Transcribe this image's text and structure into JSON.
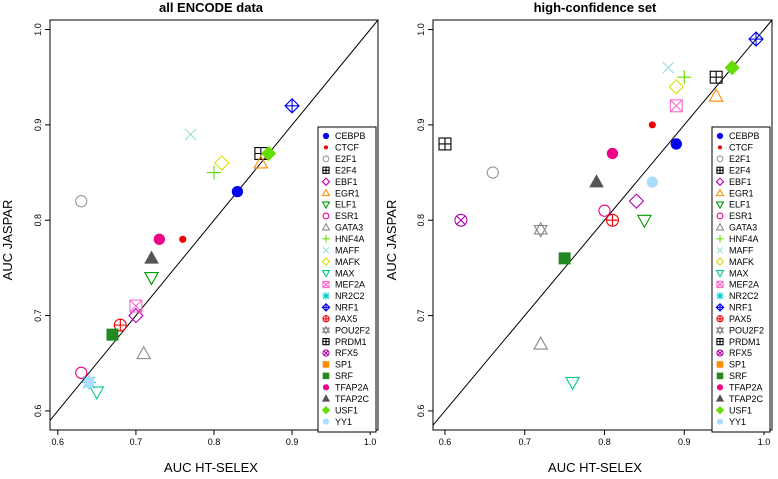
{
  "chart_data": [
    {
      "type": "scatter",
      "title": "all ENCODE data",
      "xlabel": "AUC HT-SELEX",
      "ylabel": "AUC JASPAR",
      "xlim": [
        0.59,
        1.01
      ],
      "ylim": [
        0.58,
        1.01
      ],
      "xticks": [
        "0.6",
        "0.7",
        "0.8",
        "0.9",
        "1.0"
      ],
      "yticks": [
        "0.6",
        "0.7",
        "0.8",
        "0.9",
        "1.0"
      ],
      "diagonal": true,
      "legend_position": "bottom-right",
      "points": [
        {
          "tf": "CEBPB",
          "x": 0.83,
          "y": 0.83
        },
        {
          "tf": "CTCF",
          "x": 0.76,
          "y": 0.78
        },
        {
          "tf": "E2F1",
          "x": 0.63,
          "y": 0.82
        },
        {
          "tf": "E2F4",
          "x": 0.86,
          "y": 0.87
        },
        {
          "tf": "EBF1",
          "x": 0.7,
          "y": 0.7
        },
        {
          "tf": "EGR1",
          "x": 0.86,
          "y": 0.86
        },
        {
          "tf": "ELF1",
          "x": 0.72,
          "y": 0.74
        },
        {
          "tf": "ESR1",
          "x": 0.63,
          "y": 0.64
        },
        {
          "tf": "GATA3",
          "x": 0.71,
          "y": 0.66
        },
        {
          "tf": "HNF4A",
          "x": 0.8,
          "y": 0.85
        },
        {
          "tf": "MAFF",
          "x": 0.77,
          "y": 0.89
        },
        {
          "tf": "MAFK",
          "x": 0.81,
          "y": 0.86
        },
        {
          "tf": "MAX",
          "x": 0.65,
          "y": 0.62
        },
        {
          "tf": "MEF2A",
          "x": 0.7,
          "y": 0.71
        },
        {
          "tf": "NR2C2",
          "x": 0.64,
          "y": 0.63
        },
        {
          "tf": "NRF1",
          "x": 0.9,
          "y": 0.92
        },
        {
          "tf": "PAX5",
          "x": 0.68,
          "y": 0.69
        },
        {
          "tf": "POU2F2",
          "x": null,
          "y": null
        },
        {
          "tf": "PRDM1",
          "x": null,
          "y": null
        },
        {
          "tf": "RFX5",
          "x": null,
          "y": null
        },
        {
          "tf": "SP1",
          "x": null,
          "y": null
        },
        {
          "tf": "SRF",
          "x": 0.67,
          "y": 0.68
        },
        {
          "tf": "TFAP2A",
          "x": 0.73,
          "y": 0.78
        },
        {
          "tf": "TFAP2C",
          "x": 0.72,
          "y": 0.76
        },
        {
          "tf": "USF1",
          "x": 0.87,
          "y": 0.87
        },
        {
          "tf": "YY1",
          "x": 0.64,
          "y": 0.63
        }
      ]
    },
    {
      "type": "scatter",
      "title": "high-confidence set",
      "xlabel": "AUC HT-SELEX",
      "ylabel": "AUC JASPAR",
      "xlim": [
        0.585,
        1.01
      ],
      "ylim": [
        0.58,
        1.01
      ],
      "xticks": [
        "0.6",
        "0.7",
        "0.8",
        "0.9",
        "1.0"
      ],
      "yticks": [
        "0.6",
        "0.7",
        "0.8",
        "0.9",
        "1.0"
      ],
      "diagonal": true,
      "legend_position": "bottom-right",
      "points": [
        {
          "tf": "CEBPB",
          "x": 0.89,
          "y": 0.88
        },
        {
          "tf": "CTCF",
          "x": 0.86,
          "y": 0.9
        },
        {
          "tf": "E2F1",
          "x": 0.66,
          "y": 0.85
        },
        {
          "tf": "E2F4",
          "x": 0.6,
          "y": 0.88
        },
        {
          "tf": "EBF1",
          "x": 0.84,
          "y": 0.82
        },
        {
          "tf": "EGR1",
          "x": 0.94,
          "y": 0.93
        },
        {
          "tf": "ELF1",
          "x": 0.85,
          "y": 0.8
        },
        {
          "tf": "ESR1",
          "x": 0.8,
          "y": 0.81
        },
        {
          "tf": "GATA3",
          "x": 0.72,
          "y": 0.67
        },
        {
          "tf": "HNF4A",
          "x": 0.9,
          "y": 0.95
        },
        {
          "tf": "MAFF",
          "x": 0.88,
          "y": 0.96
        },
        {
          "tf": "MAFK",
          "x": 0.89,
          "y": 0.94
        },
        {
          "tf": "MAX",
          "x": 0.76,
          "y": 0.63
        },
        {
          "tf": "MEF2A",
          "x": 0.89,
          "y": 0.92
        },
        {
          "tf": "NR2C2",
          "x": null,
          "y": null
        },
        {
          "tf": "NRF1",
          "x": 0.99,
          "y": 0.99
        },
        {
          "tf": "PAX5",
          "x": 0.81,
          "y": 0.8
        },
        {
          "tf": "POU2F2",
          "x": 0.72,
          "y": 0.79
        },
        {
          "tf": "PRDM1",
          "x": 0.94,
          "y": 0.95
        },
        {
          "tf": "RFX5",
          "x": 0.62,
          "y": 0.8
        },
        {
          "tf": "SP1",
          "x": null,
          "y": null
        },
        {
          "tf": "SRF",
          "x": 0.75,
          "y": 0.76
        },
        {
          "tf": "TFAP2A",
          "x": 0.81,
          "y": 0.87
        },
        {
          "tf": "TFAP2C",
          "x": 0.79,
          "y": 0.84
        },
        {
          "tf": "USF1",
          "x": 0.96,
          "y": 0.96
        },
        {
          "tf": "YY1",
          "x": 0.86,
          "y": 0.84
        }
      ]
    }
  ],
  "legend": [
    {
      "tf": "CEBPB",
      "color": "#0000ee",
      "marker": "circle-filled"
    },
    {
      "tf": "CTCF",
      "color": "#ee0000",
      "marker": "dot-small"
    },
    {
      "tf": "E2F1",
      "color": "#999999",
      "marker": "circle-open"
    },
    {
      "tf": "E2F4",
      "color": "#000000",
      "marker": "square-plus"
    },
    {
      "tf": "EBF1",
      "color": "#bb00bb",
      "marker": "diamond-open"
    },
    {
      "tf": "EGR1",
      "color": "#ff8c00",
      "marker": "triangle-open"
    },
    {
      "tf": "ELF1",
      "color": "#009900",
      "marker": "triangle-down-open"
    },
    {
      "tf": "ESR1",
      "color": "#ee0088",
      "marker": "circle-open"
    },
    {
      "tf": "GATA3",
      "color": "#888888",
      "marker": "triangle-open"
    },
    {
      "tf": "HNF4A",
      "color": "#66dd00",
      "marker": "plus"
    },
    {
      "tf": "MAFF",
      "color": "#99dddd",
      "marker": "cross"
    },
    {
      "tf": "MAFK",
      "color": "#dddd00",
      "marker": "diamond-open"
    },
    {
      "tf": "MAX",
      "color": "#00cc88",
      "marker": "triangle-down-open"
    },
    {
      "tf": "MEF2A",
      "color": "#ff66cc",
      "marker": "square-x"
    },
    {
      "tf": "NR2C2",
      "color": "#00cccc",
      "marker": "asterisk"
    },
    {
      "tf": "NRF1",
      "color": "#0000ee",
      "marker": "diamond-plus"
    },
    {
      "tf": "PAX5",
      "color": "#ee0000",
      "marker": "circle-plus"
    },
    {
      "tf": "POU2F2",
      "color": "#888888",
      "marker": "hourglass"
    },
    {
      "tf": "PRDM1",
      "color": "#000000",
      "marker": "square-plus"
    },
    {
      "tf": "RFX5",
      "color": "#aa00aa",
      "marker": "circle-x"
    },
    {
      "tf": "SP1",
      "color": "#ff8c00",
      "marker": "square-filled"
    },
    {
      "tf": "SRF",
      "color": "#228822",
      "marker": "square-filled"
    },
    {
      "tf": "TFAP2A",
      "color": "#ee0088",
      "marker": "circle-filled"
    },
    {
      "tf": "TFAP2C",
      "color": "#555555",
      "marker": "triangle-filled"
    },
    {
      "tf": "USF1",
      "color": "#66dd00",
      "marker": "diamond-filled"
    },
    {
      "tf": "YY1",
      "color": "#aaddff",
      "marker": "circle-filled"
    }
  ]
}
